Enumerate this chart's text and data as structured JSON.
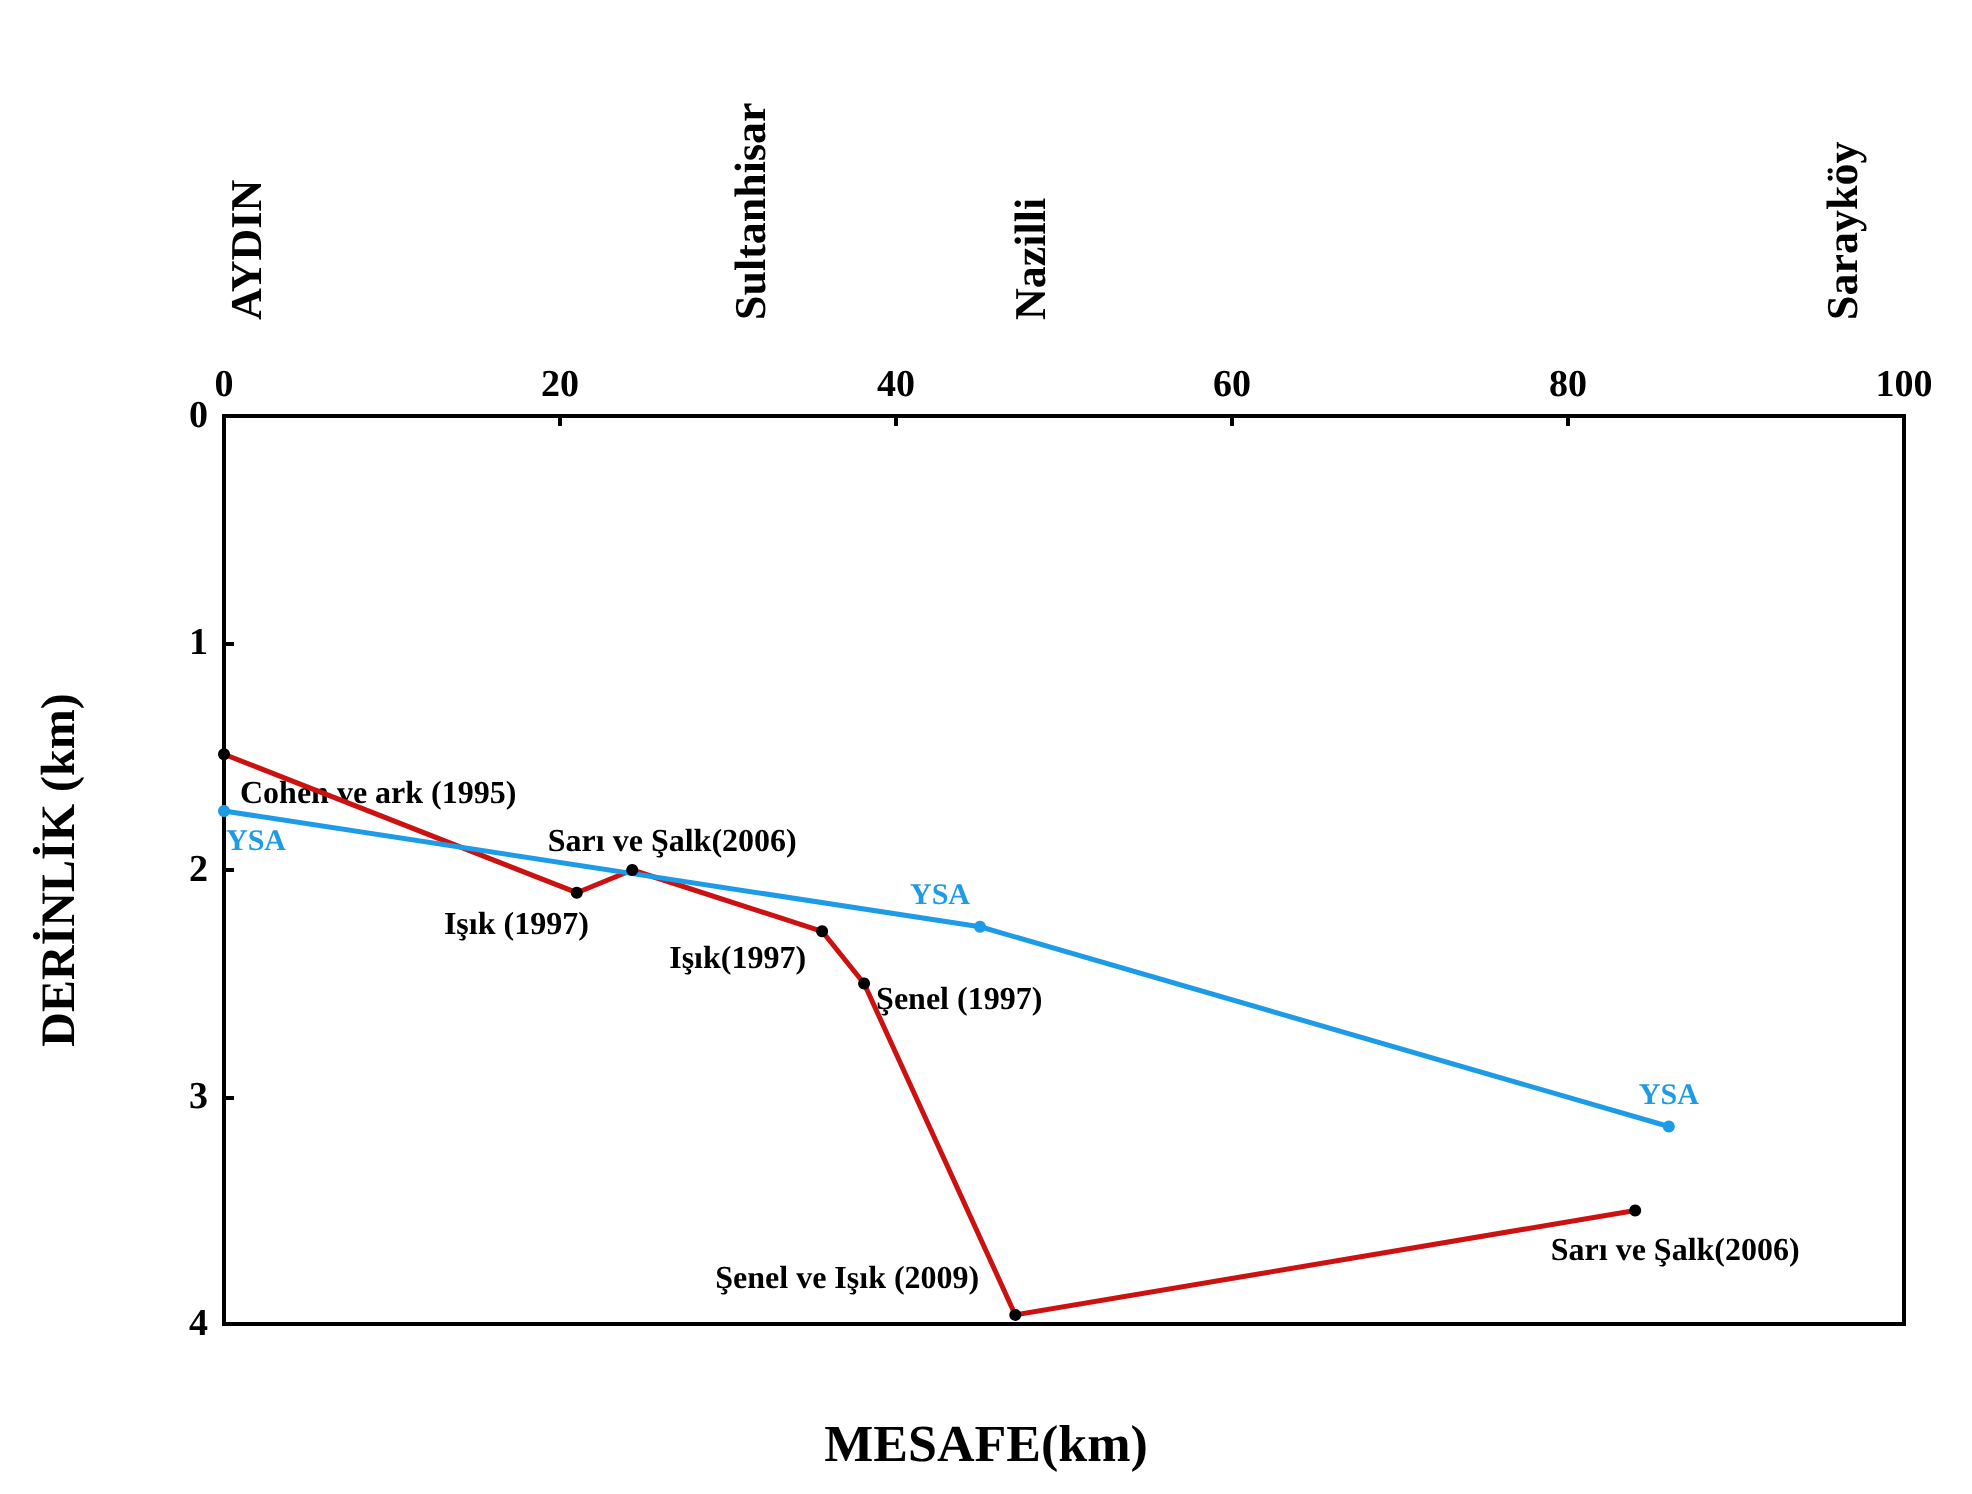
{
  "chart_data": {
    "type": "line",
    "xlabel": "MESAFE(km)",
    "ylabel": "DERİNLİK (km)",
    "xlim": [
      0,
      100
    ],
    "xticks": [
      0,
      20,
      40,
      60,
      80,
      100
    ],
    "ylim": [
      4,
      0
    ],
    "yticks": [
      0,
      1,
      2,
      3,
      4
    ],
    "grid": false,
    "legend": false,
    "marker": "circle",
    "line_style": "solid",
    "series": [
      {
        "color": "#cc1111",
        "x": [
          0,
          21,
          24.3,
          35.6,
          38.1,
          47.1,
          84
        ],
        "values": [
          1.49,
          2.1,
          2.0,
          2.27,
          2.5,
          3.96,
          3.5
        ]
      },
      {
        "name": "YSA",
        "color": "#1e9be6",
        "x": [
          0,
          45,
          86
        ],
        "values": [
          1.74,
          2.25,
          3.13
        ]
      }
    ],
    "annotations": [
      {
        "text": "Cohen ve ark (1995)",
        "x": 0,
        "y": 1.49
      },
      {
        "text": "Işık (1997)",
        "x": 21,
        "y": 2.1
      },
      {
        "text": "Sarı ve Şalk(2006)",
        "x": 24.3,
        "y": 2.0
      },
      {
        "text": "Işık(1997)",
        "x": 35.6,
        "y": 2.27
      },
      {
        "text": "Şenel (1997)",
        "x": 38.1,
        "y": 2.5
      },
      {
        "text": "Şenel ve Işık (2009)",
        "x": 47.1,
        "y": 3.96
      },
      {
        "text": "Sarı ve Şalk(2006)",
        "x": 84,
        "y": 3.5
      },
      "AYDIN",
      "Sultanhisar",
      "Nazilli",
      "Sarayköy"
    ]
  }
}
